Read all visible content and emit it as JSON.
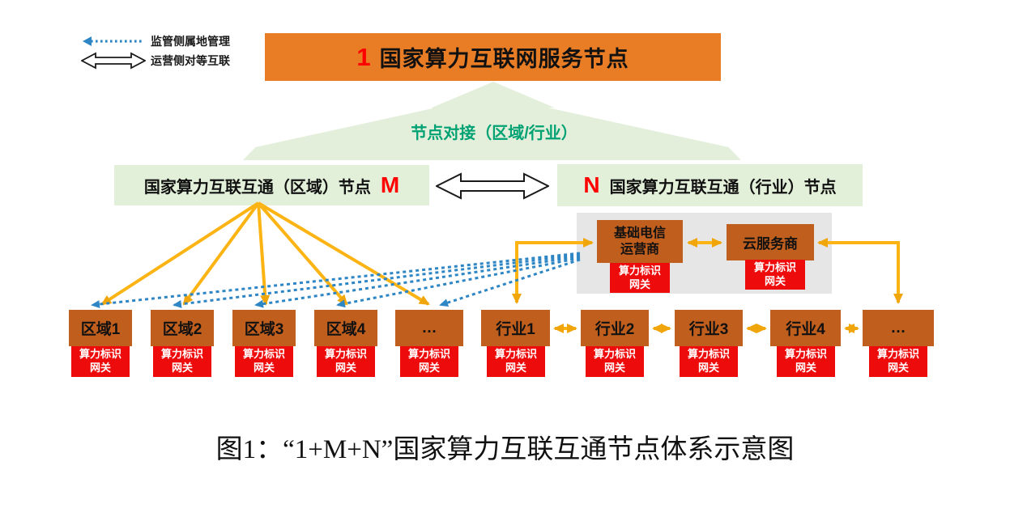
{
  "legend": {
    "supervision": {
      "icon": "dotted-arrow-icon",
      "label": "监管侧属地管理"
    },
    "operation": {
      "icon": "double-arrow-icon",
      "label": "运营侧对等互联"
    }
  },
  "top_node": {
    "number": "1",
    "label": "国家算力互联网服务节点"
  },
  "docking_label": "节点对接（区域/行业）",
  "region_hub": {
    "label": "国家算力互联互通（区域）节点",
    "letter": "M"
  },
  "industry_hub": {
    "letter": "N",
    "label": "国家算力互联互通（行业）节点"
  },
  "telecom_operator": {
    "line1": "基础电信",
    "line2": "运营商"
  },
  "cloud_provider": {
    "label": "云服务商"
  },
  "gateway": {
    "line1": "算力标识",
    "line2": "网关"
  },
  "region_leaves": [
    "区域1",
    "区域2",
    "区域3",
    "区域4",
    "…"
  ],
  "industry_leaves": [
    "行业1",
    "行业2",
    "行业3",
    "行业4",
    "…"
  ],
  "caption": "图1：“1+M+N”国家算力互联互通节点体系示意图",
  "colors": {
    "top_orange": "#E87D26",
    "node_brown": "#C05E1E",
    "gateway_red": "#EE0B0B",
    "accent_red": "#FF0000",
    "arrow_yellow": "#FBB40E",
    "supervision_blue": "#2E86C4",
    "light_green": "#E2EFD9",
    "green_text": "#00A273",
    "panel_gray": "#E6E6E6"
  }
}
